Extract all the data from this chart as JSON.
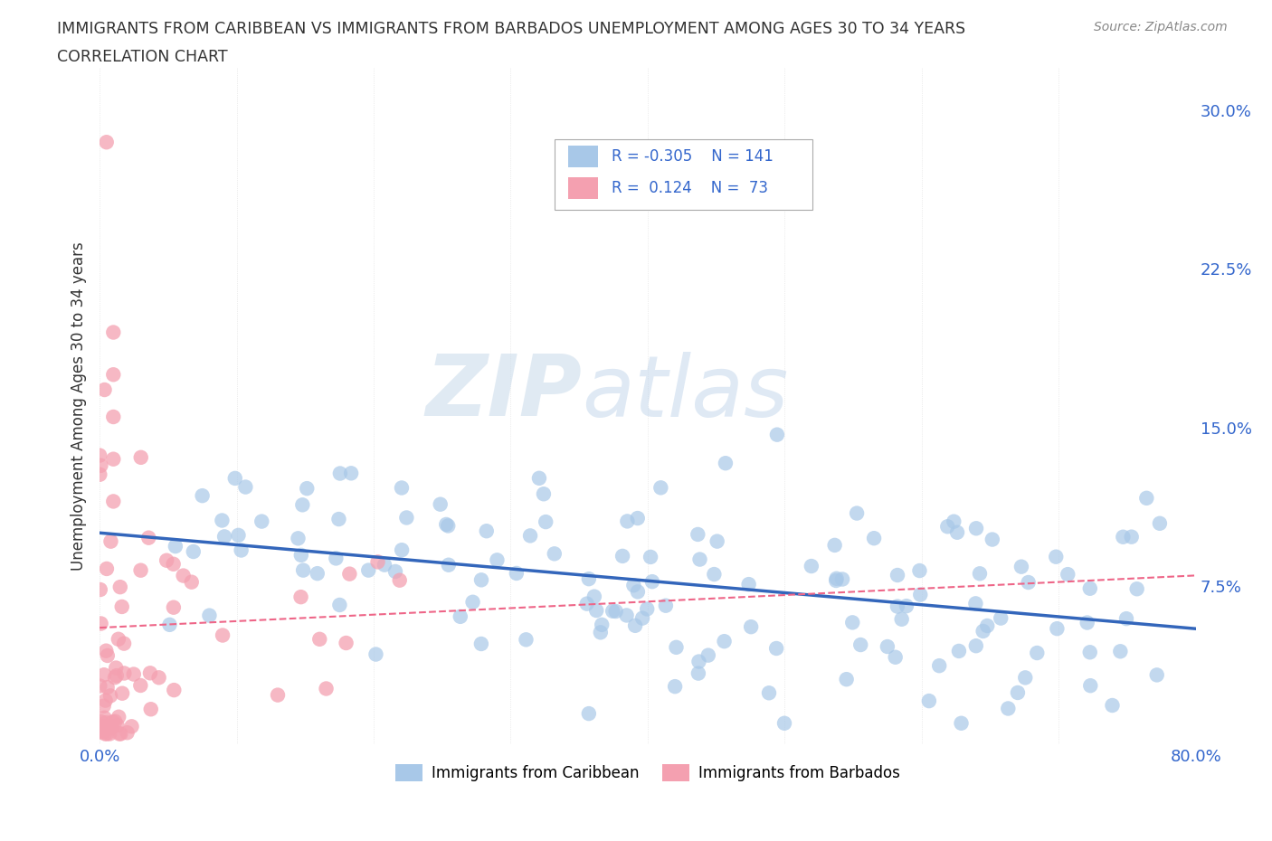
{
  "title_line1": "IMMIGRANTS FROM CARIBBEAN VS IMMIGRANTS FROM BARBADOS UNEMPLOYMENT AMONG AGES 30 TO 34 YEARS",
  "title_line2": "CORRELATION CHART",
  "source": "Source: ZipAtlas.com",
  "ylabel": "Unemployment Among Ages 30 to 34 years",
  "xlim": [
    0.0,
    0.8
  ],
  "ylim": [
    0.0,
    0.32
  ],
  "xticks": [
    0.0,
    0.1,
    0.2,
    0.3,
    0.4,
    0.5,
    0.6,
    0.7,
    0.8
  ],
  "xticklabels": [
    "0.0%",
    "",
    "",
    "",
    "",
    "",
    "",
    "",
    "80.0%"
  ],
  "yticks_right": [
    0.075,
    0.15,
    0.225,
    0.3
  ],
  "ytick_labels_right": [
    "7.5%",
    "15.0%",
    "22.5%",
    "30.0%"
  ],
  "grid_color": "#cccccc",
  "background_color": "#ffffff",
  "caribbean_color": "#a8c8e8",
  "barbados_color": "#f4a0b0",
  "caribbean_line_color": "#3366bb",
  "barbados_line_color": "#ee6688",
  "watermark_zip": "ZIP",
  "watermark_atlas": "atlas",
  "legend_R1": "-0.305",
  "legend_N1": "141",
  "legend_R2": "0.124",
  "legend_N2": "73",
  "caribbean_N": 141,
  "barbados_N": 73
}
